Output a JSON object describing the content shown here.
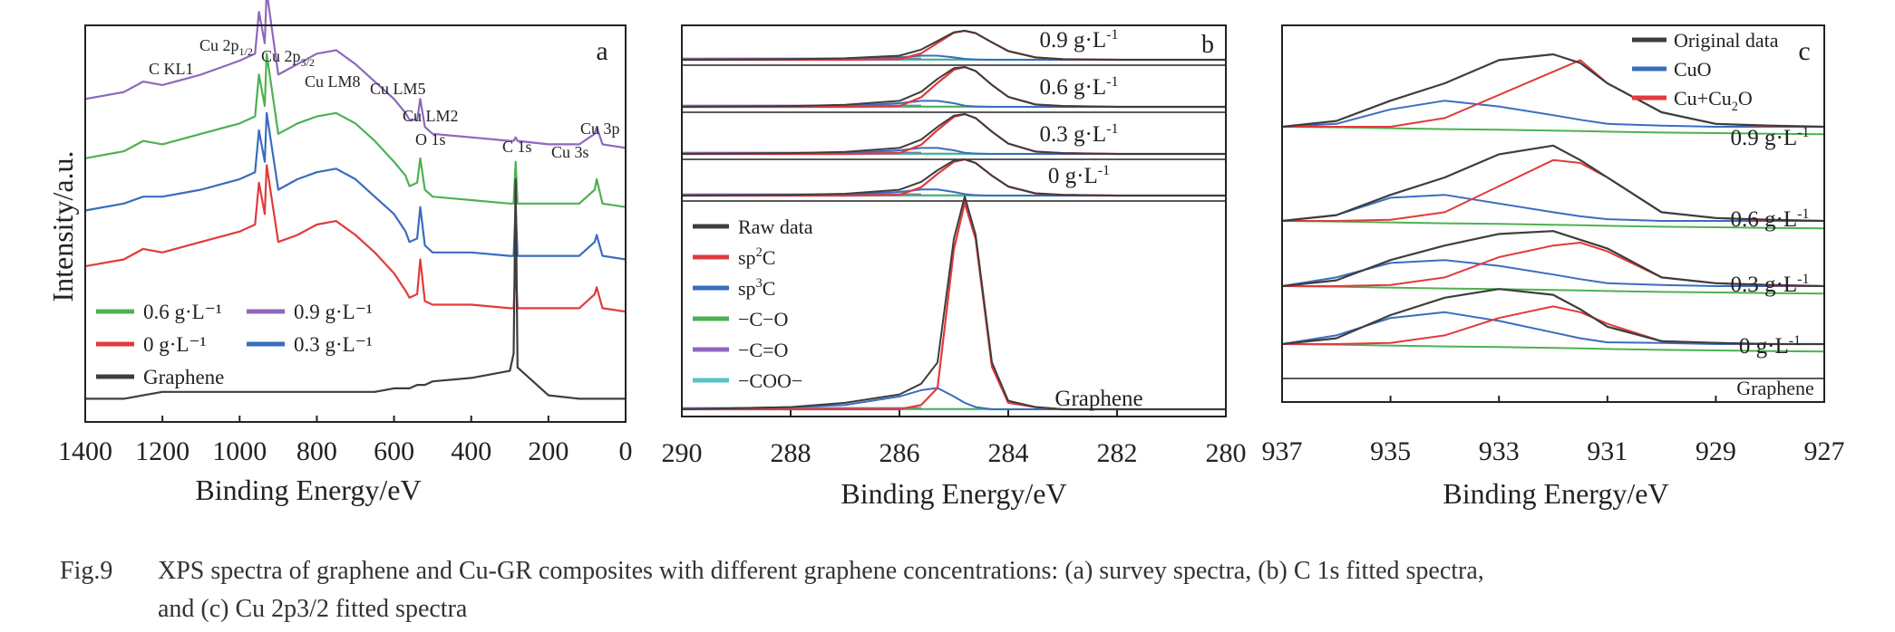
{
  "chart_data": [
    {
      "panel": "a",
      "type": "line",
      "xlabel": "Binding Energy/eV",
      "ylabel": "Intensity/a.u.",
      "xlim": [
        1400,
        0
      ],
      "x_reversed": true,
      "x_ticks": [
        "1400",
        "1200",
        "1000",
        "800",
        "600",
        "400",
        "200",
        "0"
      ],
      "y_ticks": [],
      "peak_labels": [
        "C KL1",
        "Cu 2p1/2",
        "Cu 2p3/2",
        "Cu LM8",
        "Cu LM5",
        "Cu LM2",
        "O 1s",
        "C 1s",
        "Cu 3s",
        "Cu 3p"
      ],
      "legend": [
        "0.6 g·L⁻¹",
        "0.9 g·L⁻¹",
        "0 g·L⁻¹",
        "0.3 g·L⁻¹",
        "Graphene"
      ],
      "x": [
        1400,
        1300,
        1250,
        1200,
        1100,
        1000,
        960,
        950,
        935,
        930,
        900,
        850,
        800,
        750,
        700,
        650,
        600,
        570,
        560,
        540,
        532,
        520,
        500,
        400,
        300,
        290,
        285,
        280,
        200,
        120,
        80,
        75,
        60,
        0
      ],
      "series": [
        {
          "name": "0.9 g·L⁻¹",
          "color": "#8e67bd",
          "values": [
            8.9,
            9.1,
            9.4,
            9.3,
            9.6,
            10.0,
            10.2,
            11.4,
            10.5,
            12.0,
            9.6,
            9.9,
            10.2,
            10.3,
            9.9,
            9.4,
            8.9,
            8.5,
            8.3,
            8.3,
            8.9,
            8.1,
            7.9,
            7.8,
            7.7,
            7.7,
            7.8,
            7.7,
            7.6,
            7.6,
            7.9,
            8.1,
            7.6,
            7.5
          ]
        },
        {
          "name": "0.6 g·L⁻¹",
          "color": "#4db152",
          "values": [
            7.2,
            7.4,
            7.7,
            7.6,
            7.9,
            8.2,
            8.4,
            9.6,
            8.7,
            10.2,
            7.9,
            8.2,
            8.4,
            8.5,
            8.2,
            7.7,
            7.1,
            6.7,
            6.4,
            6.5,
            7.2,
            6.3,
            6.1,
            6.0,
            5.9,
            5.9,
            7.1,
            5.9,
            5.9,
            5.9,
            6.3,
            6.6,
            5.9,
            5.8
          ]
        },
        {
          "name": "0.3 g·L⁻¹",
          "color": "#3a6cbf",
          "values": [
            5.7,
            5.9,
            6.1,
            6.1,
            6.3,
            6.6,
            6.8,
            8.0,
            7.1,
            8.5,
            6.3,
            6.6,
            6.8,
            6.9,
            6.6,
            6.1,
            5.6,
            5.1,
            4.8,
            4.9,
            5.8,
            4.7,
            4.5,
            4.5,
            4.4,
            4.4,
            5.8,
            4.4,
            4.4,
            4.4,
            4.8,
            5.0,
            4.4,
            4.3
          ]
        },
        {
          "name": "0 g·L⁻¹",
          "color": "#e23a3c",
          "values": [
            4.1,
            4.3,
            4.6,
            4.5,
            4.8,
            5.1,
            5.3,
            6.5,
            5.6,
            7.0,
            4.8,
            5.0,
            5.3,
            5.4,
            5.0,
            4.5,
            3.9,
            3.4,
            3.2,
            3.3,
            4.3,
            3.1,
            3.0,
            3.0,
            2.9,
            2.9,
            4.1,
            2.9,
            2.9,
            2.9,
            3.3,
            3.5,
            2.9,
            2.8
          ]
        },
        {
          "name": "Graphene",
          "color": "#3d3d3d",
          "values": [
            0.3,
            0.3,
            0.4,
            0.5,
            0.5,
            0.5,
            0.5,
            0.5,
            0.5,
            0.5,
            0.5,
            0.5,
            0.5,
            0.5,
            0.5,
            0.5,
            0.6,
            0.6,
            0.6,
            0.7,
            0.7,
            0.7,
            0.8,
            0.9,
            1.1,
            1.6,
            6.6,
            1.2,
            0.4,
            0.3,
            0.3,
            0.3,
            0.3,
            0.3
          ]
        }
      ]
    },
    {
      "panel": "b",
      "type": "line",
      "xlabel": "Binding Energy/eV",
      "xlim": [
        290,
        280
      ],
      "x_reversed": true,
      "x_ticks": [
        "290",
        "288",
        "286",
        "284",
        "282",
        "280"
      ],
      "legend": [
        "Raw data",
        "sp2C",
        "sp3C",
        "−C−O",
        "−C=O",
        "−COO−"
      ],
      "legend_colors": [
        "#3d3d3d",
        "#e23a3c",
        "#3a6cbf",
        "#4db152",
        "#8e67bd",
        "#5bc3c8"
      ],
      "x": [
        290,
        288,
        287,
        286,
        285.6,
        285.3,
        285.0,
        284.8,
        284.6,
        284.3,
        284.0,
        283.5,
        283,
        282,
        280
      ],
      "spectra": [
        {
          "label": "0.9 g·L⁻¹",
          "raw": [
            0,
            0.02,
            0.05,
            0.14,
            0.35,
            0.65,
            0.95,
            1.0,
            0.92,
            0.6,
            0.3,
            0.08,
            0.02,
            0,
            0
          ],
          "sp2C": [
            0,
            0,
            0,
            0.02,
            0.22,
            0.58,
            0.93,
            1.0,
            0.92,
            0.6,
            0.3,
            0.08,
            0.02,
            0,
            0
          ],
          "sp3C": [
            0,
            0.01,
            0.02,
            0.08,
            0.14,
            0.14,
            0.08,
            0.03,
            0.01,
            0,
            0,
            0,
            0,
            0,
            0
          ]
        },
        {
          "label": "0.6 g·L⁻¹",
          "raw": [
            0,
            0.02,
            0.05,
            0.15,
            0.38,
            0.7,
            0.97,
            1.0,
            0.9,
            0.55,
            0.25,
            0.06,
            0.02,
            0,
            0
          ],
          "sp2C": [
            0,
            0,
            0,
            0.02,
            0.24,
            0.6,
            0.93,
            1.0,
            0.9,
            0.55,
            0.25,
            0.06,
            0.02,
            0,
            0
          ],
          "sp3C": [
            0,
            0.01,
            0.02,
            0.09,
            0.15,
            0.15,
            0.09,
            0.03,
            0.01,
            0,
            0,
            0,
            0,
            0,
            0
          ]
        },
        {
          "label": "0.3 g·L⁻¹",
          "raw": [
            0,
            0.02,
            0.05,
            0.15,
            0.36,
            0.68,
            0.96,
            1.0,
            0.9,
            0.56,
            0.26,
            0.06,
            0.02,
            0,
            0
          ],
          "sp2C": [
            0,
            0,
            0,
            0.02,
            0.23,
            0.6,
            0.93,
            1.0,
            0.9,
            0.56,
            0.26,
            0.06,
            0.02,
            0,
            0
          ],
          "sp3C": [
            0,
            0.01,
            0.02,
            0.09,
            0.15,
            0.15,
            0.09,
            0.03,
            0.01,
            0,
            0,
            0,
            0,
            0,
            0
          ]
        },
        {
          "label": "0 g·L⁻¹",
          "raw": [
            0,
            0.02,
            0.05,
            0.16,
            0.38,
            0.7,
            0.97,
            1.0,
            0.9,
            0.55,
            0.25,
            0.06,
            0.02,
            0,
            0
          ],
          "sp2C": [
            0,
            0,
            0,
            0.02,
            0.23,
            0.6,
            0.93,
            1.0,
            0.9,
            0.55,
            0.25,
            0.06,
            0.02,
            0,
            0
          ],
          "sp3C": [
            0,
            0.01,
            0.03,
            0.1,
            0.17,
            0.17,
            0.1,
            0.04,
            0.01,
            0,
            0,
            0,
            0,
            0,
            0
          ]
        },
        {
          "label": "Graphene",
          "raw": [
            0,
            0.01,
            0.03,
            0.07,
            0.12,
            0.22,
            0.8,
            1.0,
            0.82,
            0.22,
            0.04,
            0.01,
            0,
            0,
            0
          ],
          "sp2C": [
            0,
            0,
            0,
            0,
            0.02,
            0.1,
            0.75,
            0.97,
            0.8,
            0.2,
            0.03,
            0.01,
            0,
            0,
            0
          ],
          "sp3C": [
            0,
            0.01,
            0.02,
            0.06,
            0.09,
            0.1,
            0.06,
            0.03,
            0.01,
            0,
            0,
            0,
            0,
            0,
            0
          ]
        }
      ]
    },
    {
      "panel": "c",
      "type": "line",
      "xlabel": "Binding Energy/eV",
      "xlim": [
        937,
        927
      ],
      "x_reversed": true,
      "x_ticks": [
        "937",
        "935",
        "933",
        "931",
        "929",
        "927"
      ],
      "legend": [
        "Original data",
        "CuO",
        "Cu+Cu2O"
      ],
      "legend_colors": [
        "#3d3d3d",
        "#3a6cbf",
        "#e23a3c"
      ],
      "background_color": "#4db152",
      "x": [
        937,
        936,
        935,
        934,
        933,
        932,
        931.5,
        931,
        930,
        929,
        928,
        927
      ],
      "spectra": [
        {
          "label": "0.9 g·L⁻¹",
          "original": [
            0,
            0.1,
            0.45,
            0.75,
            1.15,
            1.25,
            1.1,
            0.75,
            0.25,
            0.05,
            0.02,
            0
          ],
          "cuo": [
            0,
            0.05,
            0.3,
            0.45,
            0.35,
            0.2,
            0.12,
            0.05,
            0.02,
            0,
            0,
            0
          ],
          "cu": [
            0,
            0,
            0,
            0.15,
            0.55,
            0.95,
            1.15,
            0.75,
            0.25,
            0.05,
            0.01,
            0
          ],
          "bg": [
            0,
            -0.02,
            -0.05,
            -0.08,
            -0.1,
            -0.13,
            -0.15,
            -0.17,
            -0.2,
            -0.22,
            -0.24,
            -0.26
          ]
        },
        {
          "label": "0.6 g·L⁻¹",
          "original": [
            0,
            0.1,
            0.45,
            0.75,
            1.15,
            1.3,
            1.05,
            0.75,
            0.15,
            0.05,
            0.02,
            0
          ],
          "cuo": [
            0,
            0.1,
            0.4,
            0.45,
            0.3,
            0.15,
            0.08,
            0.03,
            0,
            0,
            0,
            0
          ],
          "cu": [
            0,
            0,
            0.02,
            0.15,
            0.6,
            1.05,
            1.0,
            0.75,
            0.15,
            0.05,
            0.01,
            0
          ],
          "bg": [
            0,
            -0.02,
            -0.05,
            -0.08,
            -0.1,
            -0.13,
            -0.15,
            -0.17,
            -0.2,
            -0.22,
            -0.24,
            -0.26
          ]
        },
        {
          "label": "0.3 g·L⁻¹",
          "original": [
            0,
            0.1,
            0.45,
            0.7,
            0.9,
            0.95,
            0.8,
            0.65,
            0.15,
            0.05,
            0.02,
            0
          ],
          "cuo": [
            0,
            0.15,
            0.4,
            0.45,
            0.35,
            0.2,
            0.12,
            0.05,
            0.02,
            0,
            0,
            0
          ],
          "cu": [
            0,
            0,
            0.02,
            0.15,
            0.5,
            0.7,
            0.75,
            0.6,
            0.15,
            0.05,
            0.01,
            0
          ],
          "bg": [
            0,
            -0.02,
            -0.05,
            -0.08,
            -0.1,
            -0.13,
            -0.15,
            -0.17,
            -0.2,
            -0.22,
            -0.24,
            -0.26
          ]
        },
        {
          "label": "0 g·L⁻¹",
          "original": [
            0,
            0.1,
            0.5,
            0.8,
            0.95,
            0.85,
            0.6,
            0.3,
            0.05,
            0.02,
            0,
            0
          ],
          "cuo": [
            0,
            0.15,
            0.45,
            0.55,
            0.4,
            0.2,
            0.1,
            0.03,
            0.02,
            0,
            0,
            0
          ],
          "cu": [
            0,
            0,
            0.02,
            0.15,
            0.45,
            0.65,
            0.55,
            0.35,
            0.05,
            0.02,
            0,
            0
          ],
          "bg": [
            0,
            -0.02,
            -0.05,
            -0.08,
            -0.1,
            -0.13,
            -0.15,
            -0.17,
            -0.2,
            -0.22,
            -0.24,
            -0.26
          ]
        }
      ],
      "bottom_label": "Graphene"
    }
  ],
  "panel_letters": [
    "a",
    "b",
    "c"
  ],
  "caption": {
    "number": "Fig.9",
    "line1": "XPS spectra of graphene and Cu-GR composites with different graphene concentrations: (a) survey spectra, (b) C 1s fitted spectra,",
    "line2": "and (c) Cu 2p3/2 fitted spectra"
  }
}
